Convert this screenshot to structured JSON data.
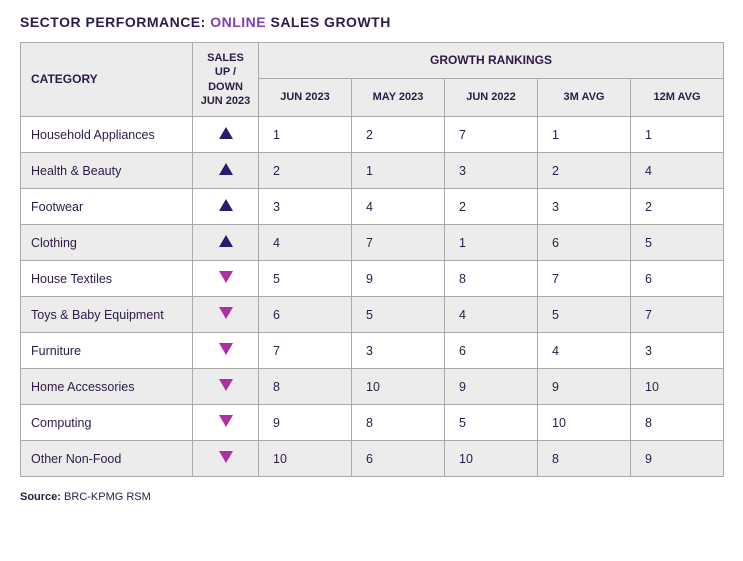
{
  "title": {
    "prefix": "SECTOR PERFORMANCE: ",
    "highlight": "ONLINE",
    "suffix": " SALES GROWTH"
  },
  "colors": {
    "title_text": "#2d1a47",
    "title_highlight": "#7b3fb5",
    "header_bg": "#ececec",
    "row_even_bg": "#ececec",
    "row_odd_bg": "#ffffff",
    "border": "#aaaaaa",
    "arrow_up": "#2d1a6f",
    "arrow_down": "#b02da3",
    "text": "#2d1a47"
  },
  "table": {
    "headers": {
      "category": "CATEGORY",
      "updown": "SALES UP / DOWN JUN 2023",
      "rankings_group": "GROWTH RANKINGS",
      "rank_cols": [
        "JUN 2023",
        "MAY 2023",
        "JUN 2022",
        "3M AVG",
        "12M AVG"
      ]
    },
    "rows": [
      {
        "category": "Household Appliances",
        "direction": "up",
        "ranks": [
          "1",
          "2",
          "7",
          "1",
          "1"
        ]
      },
      {
        "category": "Health & Beauty",
        "direction": "up",
        "ranks": [
          "2",
          "1",
          "3",
          "2",
          "4"
        ]
      },
      {
        "category": "Footwear",
        "direction": "up",
        "ranks": [
          "3",
          "4",
          "2",
          "3",
          "2"
        ]
      },
      {
        "category": "Clothing",
        "direction": "up",
        "ranks": [
          "4",
          "7",
          "1",
          "6",
          "5"
        ]
      },
      {
        "category": "House Textiles",
        "direction": "down",
        "ranks": [
          "5",
          "9",
          "8",
          "7",
          "6"
        ]
      },
      {
        "category": "Toys & Baby Equipment",
        "direction": "down",
        "ranks": [
          "6",
          "5",
          "4",
          "5",
          "7"
        ]
      },
      {
        "category": "Furniture",
        "direction": "down",
        "ranks": [
          "7",
          "3",
          "6",
          "4",
          "3"
        ]
      },
      {
        "category": "Home Accessories",
        "direction": "down",
        "ranks": [
          "8",
          "10",
          "9",
          "9",
          "10"
        ]
      },
      {
        "category": "Computing",
        "direction": "down",
        "ranks": [
          "9",
          "8",
          "5",
          "10",
          "8"
        ]
      },
      {
        "category": "Other Non-Food",
        "direction": "down",
        "ranks": [
          "10",
          "6",
          "10",
          "8",
          "9"
        ]
      }
    ]
  },
  "source": {
    "label": "Source:",
    "value": "BRC-KPMG RSM"
  }
}
